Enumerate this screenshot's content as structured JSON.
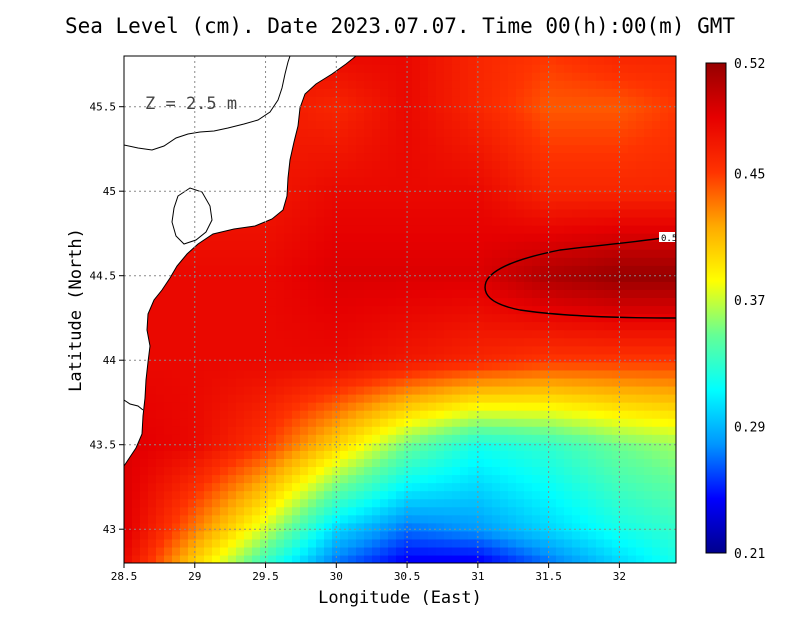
{
  "chart_data": {
    "type": "heatmap",
    "title": "Sea Level (cm). Date 2023.07.07. Time 00(h):00(m) GMT",
    "xlabel": "Longitude (East)",
    "ylabel": "Latitude (North)",
    "annotation": "Z = 2.5 m",
    "xlim": [
      28.5,
      32.4
    ],
    "ylim": [
      42.8,
      45.8
    ],
    "x_ticks": [
      {
        "value": 28.5,
        "label": "28.5"
      },
      {
        "value": 29,
        "label": "29"
      },
      {
        "value": 29.5,
        "label": "29.5"
      },
      {
        "value": 30,
        "label": "30"
      },
      {
        "value": 30.5,
        "label": "30.5"
      },
      {
        "value": 31,
        "label": "31"
      },
      {
        "value": 31.5,
        "label": "31.5"
      },
      {
        "value": 32,
        "label": "32"
      }
    ],
    "y_ticks": [
      {
        "value": 43,
        "label": "43"
      },
      {
        "value": 43.5,
        "label": "43.5"
      },
      {
        "value": 44,
        "label": "44"
      },
      {
        "value": 44.5,
        "label": "44.5"
      },
      {
        "value": 45,
        "label": "45"
      },
      {
        "value": 45.5,
        "label": "45.5"
      }
    ],
    "grid": true,
    "colorbar": {
      "min": 0.21,
      "max": 0.52,
      "ticks": [
        {
          "value": 0.52,
          "label": "0.52"
        },
        {
          "value": 0.45,
          "label": "0.45"
        },
        {
          "value": 0.37,
          "label": "0.37"
        },
        {
          "value": 0.29,
          "label": "0.29"
        },
        {
          "value": 0.21,
          "label": "0.21"
        }
      ],
      "colors": [
        "#00008c",
        "#0000ff",
        "#0096ff",
        "#00ffff",
        "#64ff96",
        "#ffff00",
        "#ffaa00",
        "#ff3300",
        "#e60000",
        "#960000"
      ]
    },
    "contours": [
      {
        "level": 0.5,
        "label": "0.5"
      }
    ],
    "field_samples": {
      "x": [
        28.5,
        29.0,
        29.5,
        30.0,
        30.5,
        31.0,
        31.5,
        32.0,
        32.4
      ],
      "y": [
        45.8,
        45.5,
        45.0,
        44.5,
        44.0,
        43.5,
        43.0,
        42.8
      ],
      "z": [
        [
          0.47,
          0.47,
          0.47,
          0.48,
          0.48,
          0.46,
          0.45,
          0.46,
          0.46
        ],
        [
          0.47,
          0.47,
          0.47,
          0.46,
          0.48,
          0.46,
          0.44,
          0.44,
          0.45
        ],
        [
          0.47,
          0.47,
          0.47,
          0.48,
          0.48,
          0.48,
          0.46,
          0.46,
          0.46
        ],
        [
          0.48,
          0.48,
          0.48,
          0.49,
          0.49,
          0.49,
          0.51,
          0.52,
          0.52
        ],
        [
          0.48,
          0.48,
          0.48,
          0.48,
          0.47,
          0.46,
          0.45,
          0.45,
          0.45
        ],
        [
          0.49,
          0.48,
          0.45,
          0.4,
          0.35,
          0.32,
          0.33,
          0.35,
          0.36
        ],
        [
          0.49,
          0.43,
          0.37,
          0.3,
          0.27,
          0.28,
          0.3,
          0.32,
          0.33
        ],
        [
          0.48,
          0.4,
          0.33,
          0.27,
          0.24,
          0.24,
          0.27,
          0.3,
          0.32
        ]
      ]
    }
  }
}
